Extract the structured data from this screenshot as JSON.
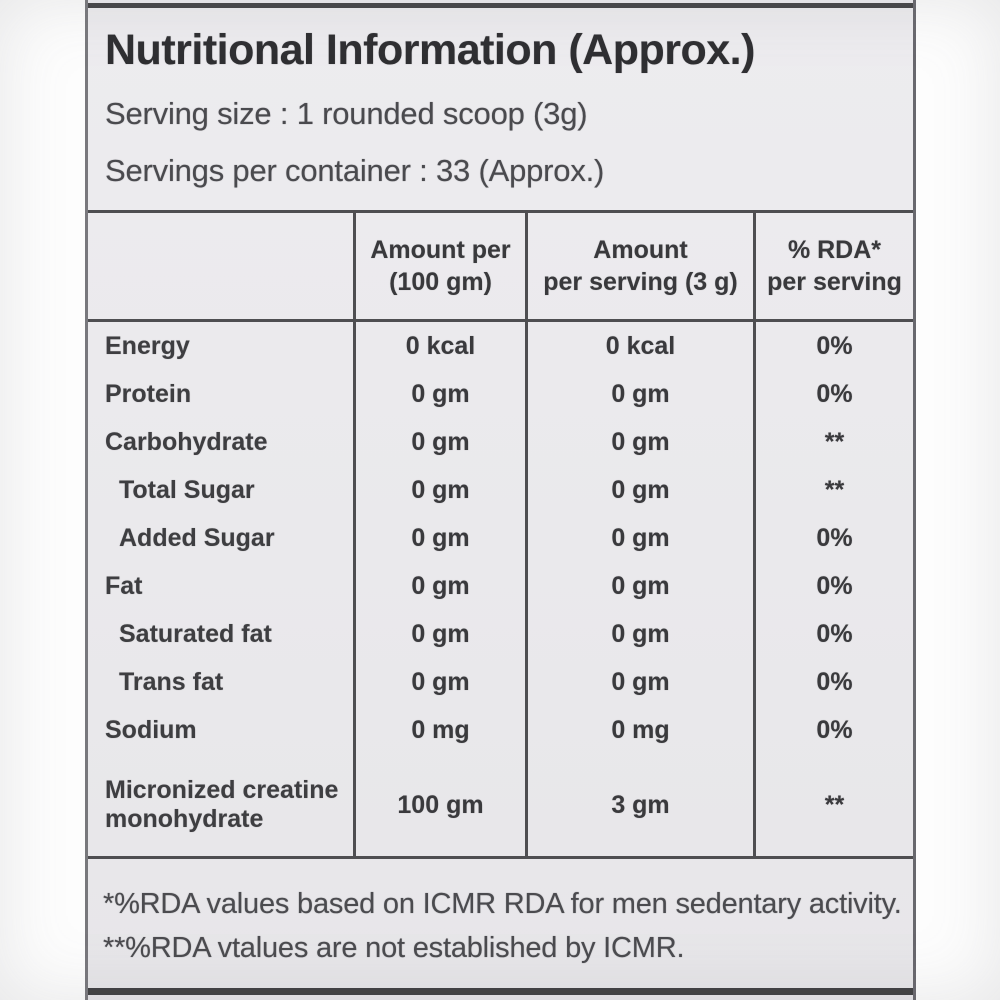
{
  "label": {
    "title": "Nutritional Information (Approx.)",
    "serving_size": "Serving size : 1 rounded scoop (3g)",
    "servings_per_container": "Servings per container : 33 (Approx.)"
  },
  "table": {
    "headers": [
      {
        "line1": "Amount per",
        "line2": "(100 gm)"
      },
      {
        "line1": "Amount",
        "line2": "per serving (3 g)"
      },
      {
        "line1": "% RDA*",
        "line2": "per serving"
      }
    ],
    "rows": [
      {
        "name": "Energy",
        "indent": false,
        "per_100gm": "0 kcal",
        "per_serving": "0 kcal",
        "rda": "0%"
      },
      {
        "name": "Protein",
        "indent": false,
        "per_100gm": "0 gm",
        "per_serving": "0 gm",
        "rda": "0%"
      },
      {
        "name": "Carbohydrate",
        "indent": false,
        "per_100gm": "0 gm",
        "per_serving": "0 gm",
        "rda": "**"
      },
      {
        "name": "Total Sugar",
        "indent": true,
        "per_100gm": "0 gm",
        "per_serving": "0 gm",
        "rda": "**"
      },
      {
        "name": "Added Sugar",
        "indent": true,
        "per_100gm": "0 gm",
        "per_serving": "0 gm",
        "rda": "0%"
      },
      {
        "name": "Fat",
        "indent": false,
        "per_100gm": "0 gm",
        "per_serving": "0 gm",
        "rda": "0%"
      },
      {
        "name": "Saturated fat",
        "indent": true,
        "per_100gm": "0 gm",
        "per_serving": "0 gm",
        "rda": "0%"
      },
      {
        "name": "Trans fat",
        "indent": true,
        "per_100gm": "0 gm",
        "per_serving": "0 gm",
        "rda": "0%"
      },
      {
        "name": "Sodium",
        "indent": false,
        "per_100gm": "0 mg",
        "per_serving": "0 mg",
        "rda": "0%"
      },
      {
        "name": "Micronized creatine monohydrate",
        "indent": false,
        "per_100gm": "100 gm",
        "per_serving": "3 gm",
        "rda": "**"
      }
    ]
  },
  "footnotes": [
    "*%RDA values based on ICMR RDA for men sedentary activity.",
    "**%RDA vtalues are not established by ICMR."
  ]
}
